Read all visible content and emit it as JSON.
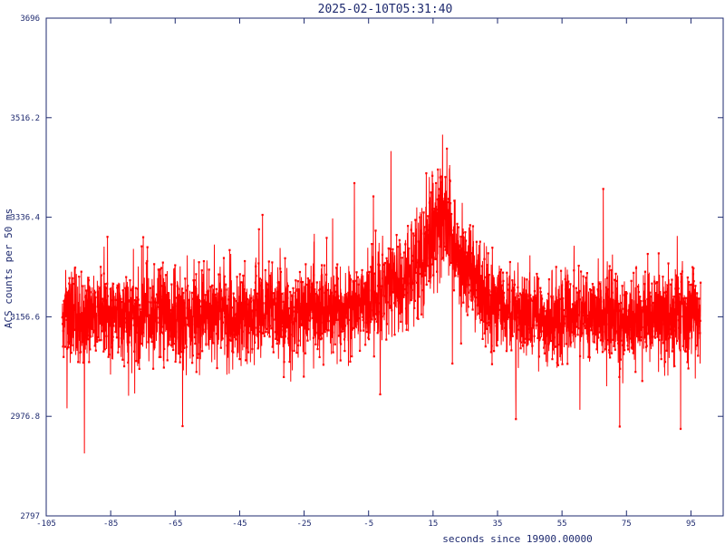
{
  "chart_data": {
    "type": "line",
    "title": "2025-02-10T05:31:40",
    "xlabel": "seconds since 19900.00000",
    "ylabel": "ACS counts per 50 ms",
    "xlim": [
      -105,
      105
    ],
    "ylim": [
      2797,
      3696
    ],
    "x_ticks": [
      -105,
      -85,
      -65,
      -45,
      -25,
      -5,
      15,
      35,
      55,
      75,
      95
    ],
    "y_ticks": [
      2797,
      2976.8,
      3156.6,
      3336.4,
      3516.2,
      3696
    ],
    "grid": false,
    "legend": "none",
    "colors": {
      "series": "#ff0000",
      "axes": "#1e2a6f",
      "background": "#ffffff"
    },
    "series": [
      {
        "color": "#ff0000",
        "marker": "square",
        "sampling": "every 50 ms (0.05 s) from -100 to 98",
        "x": [
          -100,
          -96,
          -92,
          -88,
          -84,
          -80,
          -76,
          -72,
          -68,
          -64,
          -60,
          -56,
          -52,
          -48,
          -44,
          -40,
          -36,
          -32,
          -28,
          -24,
          -20,
          -16,
          -12,
          -8,
          -4,
          -2,
          0,
          2,
          4,
          6,
          8,
          10,
          12,
          13,
          14,
          15,
          16,
          17,
          18,
          19,
          20,
          21,
          22,
          24,
          26,
          28,
          30,
          34,
          38,
          42,
          46,
          50,
          54,
          58,
          62,
          66,
          70,
          74,
          78,
          82,
          86,
          90,
          94,
          98
        ],
        "y": [
          3160,
          3158,
          3162,
          3155,
          3161,
          3159,
          3157,
          3163,
          3160,
          3156,
          3158,
          3161,
          3163,
          3160,
          3158,
          3162,
          3164,
          3161,
          3166,
          3168,
          3165,
          3170,
          3172,
          3176,
          3185,
          3195,
          3205,
          3212,
          3218,
          3225,
          3235,
          3245,
          3265,
          3285,
          3300,
          3315,
          3330,
          3340,
          3345,
          3340,
          3325,
          3305,
          3285,
          3260,
          3240,
          3225,
          3205,
          3185,
          3170,
          3164,
          3160,
          3158,
          3161,
          3157,
          3159,
          3162,
          3158,
          3156,
          3160,
          3163,
          3158,
          3160,
          3159,
          3158
        ]
      }
    ]
  }
}
